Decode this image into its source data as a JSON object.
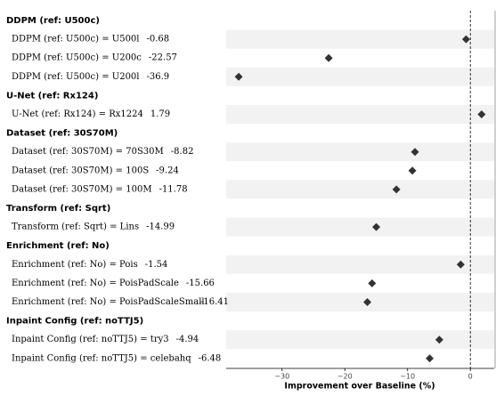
{
  "chart_data": {
    "type": "forest",
    "groups": [
      {
        "title": "DDPM (ref: U500c)",
        "items": [
          {
            "label": "DDPM (ref: U500c) = U500l",
            "value": -0.68
          },
          {
            "label": "DDPM (ref: U500c) = U200c",
            "value": -22.57
          },
          {
            "label": "DDPM (ref: U500c) = U200l",
            "value": -36.9
          }
        ]
      },
      {
        "title": "U-Net (ref: Rx124)",
        "items": [
          {
            "label": "U-Net (ref: Rx124) = Rx1224",
            "value": 1.79
          }
        ]
      },
      {
        "title": "Dataset (ref: 30S70M)",
        "items": [
          {
            "label": "Dataset (ref: 30S70M) = 70S30M",
            "value": -8.82
          },
          {
            "label": "Dataset (ref: 30S70M) = 100S",
            "value": -9.24
          },
          {
            "label": "Dataset (ref: 30S70M) = 100M",
            "value": -11.78
          }
        ]
      },
      {
        "title": "Transform (ref: Sqrt)",
        "items": [
          {
            "label": "Transform (ref: Sqrt) = Lins",
            "value": -14.99
          }
        ]
      },
      {
        "title": "Enrichment (ref: No)",
        "items": [
          {
            "label": "Enrichment (ref: No) = Pois",
            "value": -1.54
          },
          {
            "label": "Enrichment (ref: No) = PoisPadScale",
            "value": -15.66
          },
          {
            "label": "Enrichment (ref: No) = PoisPadScaleSmall",
            "value": -16.41
          }
        ]
      },
      {
        "title": "Inpaint Config (ref: noTTJ5)",
        "items": [
          {
            "label": "Inpaint Config (ref: noTTJ5) = try3",
            "value": -4.94
          },
          {
            "label": "Inpaint Config (ref: noTTJ5) = celebahq",
            "value": -6.48
          }
        ]
      }
    ],
    "xlabel": "Improvement over Baseline (%)",
    "xlim": [
      -38.9,
      3.8
    ],
    "xticks": [
      {
        "value": -30,
        "label": "−30"
      },
      {
        "value": -20,
        "label": "−20"
      },
      {
        "value": -10,
        "label": "−10"
      },
      0
    ],
    "color": "#333333",
    "band_color": "#f2f2f2"
  }
}
